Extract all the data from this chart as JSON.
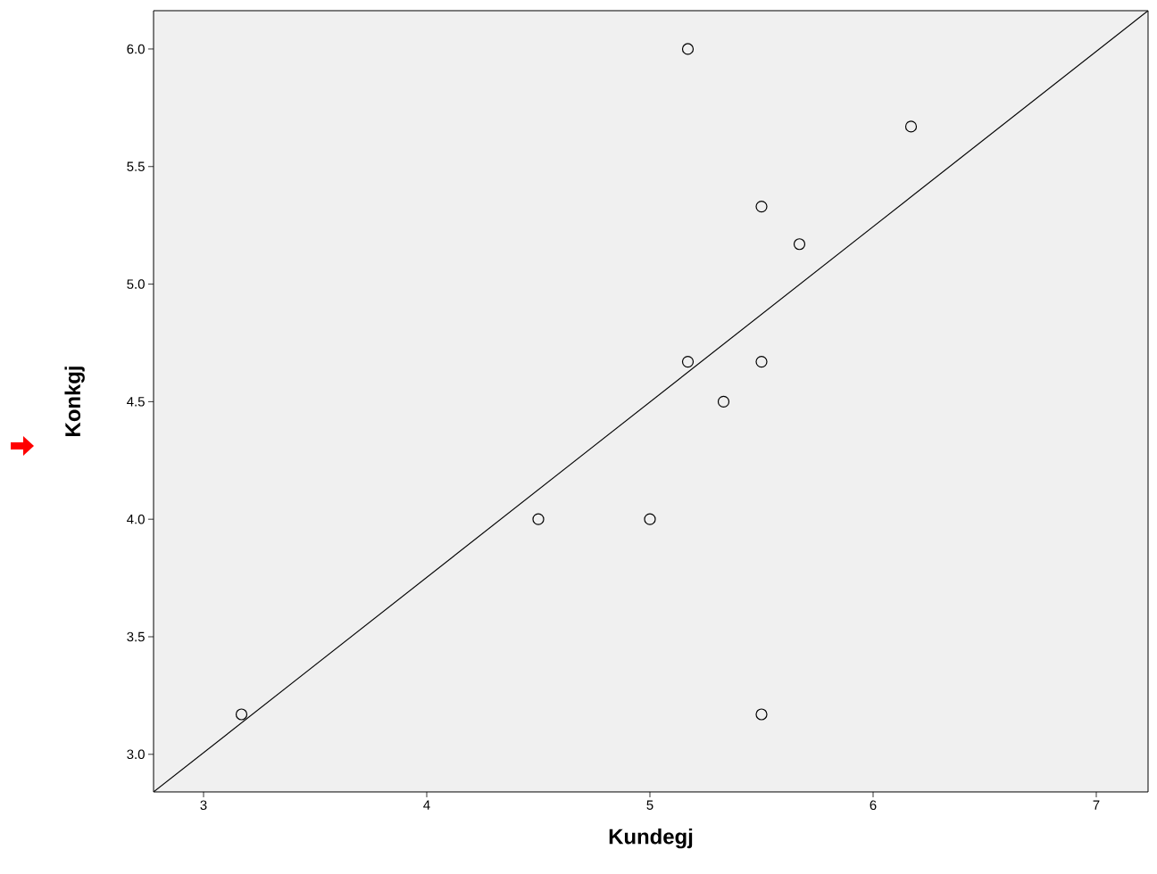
{
  "chart_data": {
    "type": "scatter",
    "xlabel": "Kundegj",
    "ylabel": "Konkgj",
    "xlim": [
      2.776,
      7.232
    ],
    "ylim": [
      2.84,
      6.163
    ],
    "xticks": [
      3,
      4,
      5,
      6,
      7
    ],
    "yticks": [
      {
        "value": 3,
        "label": "3.0"
      },
      {
        "value": 3.5,
        "label": "3.5"
      },
      {
        "value": 4,
        "label": "4.0"
      },
      {
        "value": 4.5,
        "label": "4.5"
      },
      {
        "value": 5,
        "label": "5.0"
      },
      {
        "value": 5.5,
        "label": "5.5"
      },
      {
        "value": 6,
        "label": "6.0"
      }
    ],
    "series": [
      {
        "marker": "circle",
        "color": "#000000",
        "x": [
          5.17,
          6.17,
          5.5,
          5.67,
          5.17,
          5.5,
          5.33,
          4.5,
          5.0,
          3.17,
          5.5
        ],
        "values": [
          6.0,
          5.67,
          5.33,
          5.17,
          4.67,
          4.67,
          4.5,
          4.0,
          4.0,
          3.17,
          3.17
        ]
      },
      {
        "type": "line",
        "marker": "none",
        "color": "#000000",
        "x": [
          2.776,
          7.232
        ],
        "values": [
          2.84,
          6.163
        ]
      }
    ]
  }
}
